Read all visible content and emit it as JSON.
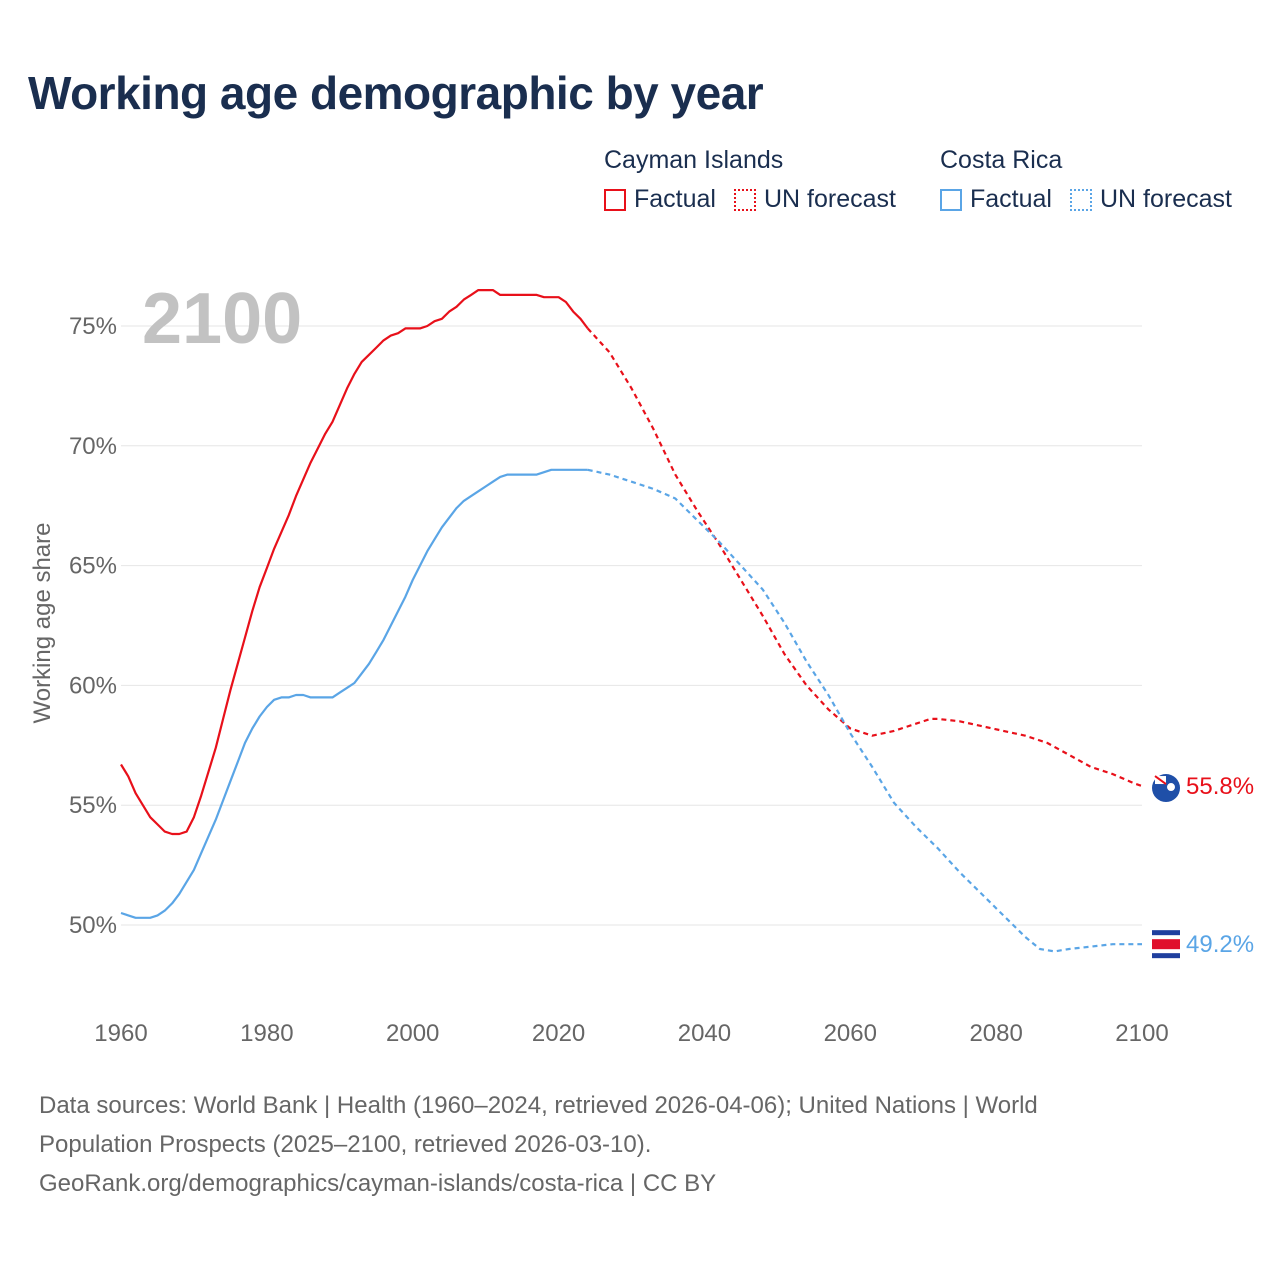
{
  "title": "Working age demographic by year",
  "year_watermark": "2100",
  "legend": {
    "groups": [
      {
        "name": "Cayman Islands",
        "color": "#e8101a",
        "factual_label": "Factual",
        "forecast_label": "UN forecast"
      },
      {
        "name": "Costa Rica",
        "color": "#5aa5e6",
        "factual_label": "Factual",
        "forecast_label": "UN forecast"
      }
    ]
  },
  "footer": {
    "line1": "Data sources: World Bank | Health (1960–2024, retrieved 2026-04-06); United Nations | World",
    "line2": "Population Prospects (2025–2100, retrieved 2026-03-10).",
    "line3": "GeoRank.org/demographics/cayman-islands/costa-rica | CC BY"
  },
  "chart_data": {
    "type": "line",
    "title": "Working age demographic by year",
    "xlabel": "",
    "ylabel": "Working age share",
    "xlim": [
      1960,
      2100
    ],
    "ylim": [
      47,
      78
    ],
    "x_ticks": [
      1960,
      1980,
      2000,
      2020,
      2040,
      2060,
      2080,
      2100
    ],
    "y_ticks": [
      50,
      55,
      60,
      65,
      70,
      75
    ],
    "y_tick_labels": [
      "50%",
      "55%",
      "60%",
      "65%",
      "70%",
      "75%"
    ],
    "grid": true,
    "series": [
      {
        "name": "Cayman Islands",
        "color": "#e8101a",
        "end_label": "55.8%",
        "factual": {
          "x": [
            1960,
            1961,
            1962,
            1963,
            1964,
            1965,
            1966,
            1967,
            1968,
            1969,
            1970,
            1971,
            1972,
            1973,
            1974,
            1975,
            1976,
            1977,
            1978,
            1979,
            1980,
            1981,
            1982,
            1983,
            1984,
            1985,
            1986,
            1987,
            1988,
            1989,
            1990,
            1991,
            1992,
            1993,
            1994,
            1995,
            1996,
            1997,
            1998,
            1999,
            2000,
            2001,
            2002,
            2003,
            2004,
            2005,
            2006,
            2007,
            2008,
            2009,
            2010,
            2011,
            2012,
            2013,
            2014,
            2015,
            2016,
            2017,
            2018,
            2019,
            2020,
            2021,
            2022,
            2023,
            2024
          ],
          "y": [
            56.7,
            56.2,
            55.5,
            55.0,
            54.5,
            54.2,
            53.9,
            53.8,
            53.8,
            53.9,
            54.5,
            55.4,
            56.4,
            57.4,
            58.6,
            59.8,
            60.9,
            62.0,
            63.1,
            64.1,
            64.9,
            65.7,
            66.4,
            67.1,
            67.9,
            68.6,
            69.3,
            69.9,
            70.5,
            71.0,
            71.7,
            72.4,
            73.0,
            73.5,
            73.8,
            74.1,
            74.4,
            74.6,
            74.7,
            74.9,
            74.9,
            74.9,
            75.0,
            75.2,
            75.3,
            75.6,
            75.8,
            76.1,
            76.3,
            76.5,
            76.5,
            76.5,
            76.3,
            76.3,
            76.3,
            76.3,
            76.3,
            76.3,
            76.2,
            76.2,
            76.2,
            76.0,
            75.6,
            75.3,
            74.9
          ]
        },
        "forecast": {
          "x": [
            2024,
            2027,
            2030,
            2033,
            2036,
            2039,
            2042,
            2045,
            2048,
            2051,
            2054,
            2057,
            2060,
            2063,
            2066,
            2069,
            2071,
            2072,
            2075,
            2078,
            2081,
            2084,
            2087,
            2090,
            2093,
            2096,
            2099,
            2100
          ],
          "y": [
            74.9,
            73.9,
            72.4,
            70.7,
            68.8,
            67.3,
            65.9,
            64.4,
            62.9,
            61.3,
            60.0,
            59.0,
            58.2,
            57.9,
            58.1,
            58.4,
            58.6,
            58.6,
            58.5,
            58.3,
            58.1,
            57.9,
            57.6,
            57.1,
            56.6,
            56.3,
            55.9,
            55.8
          ]
        }
      },
      {
        "name": "Costa Rica",
        "color": "#5aa5e6",
        "end_label": "49.2%",
        "factual": {
          "x": [
            1960,
            1961,
            1962,
            1963,
            1964,
            1965,
            1966,
            1967,
            1968,
            1969,
            1970,
            1971,
            1972,
            1973,
            1974,
            1975,
            1976,
            1977,
            1978,
            1979,
            1980,
            1981,
            1982,
            1983,
            1984,
            1985,
            1986,
            1987,
            1988,
            1989,
            1990,
            1991,
            1992,
            1993,
            1994,
            1995,
            1996,
            1997,
            1998,
            1999,
            2000,
            2001,
            2002,
            2003,
            2004,
            2005,
            2006,
            2007,
            2008,
            2009,
            2010,
            2011,
            2012,
            2013,
            2014,
            2015,
            2016,
            2017,
            2018,
            2019,
            2020,
            2021,
            2022,
            2023,
            2024
          ],
          "y": [
            50.5,
            50.4,
            50.3,
            50.3,
            50.3,
            50.4,
            50.6,
            50.9,
            51.3,
            51.8,
            52.3,
            53.0,
            53.7,
            54.4,
            55.2,
            56.0,
            56.8,
            57.6,
            58.2,
            58.7,
            59.1,
            59.4,
            59.5,
            59.5,
            59.6,
            59.6,
            59.5,
            59.5,
            59.5,
            59.5,
            59.7,
            59.9,
            60.1,
            60.5,
            60.9,
            61.4,
            61.9,
            62.5,
            63.1,
            63.7,
            64.4,
            65.0,
            65.6,
            66.1,
            66.6,
            67.0,
            67.4,
            67.7,
            67.9,
            68.1,
            68.3,
            68.5,
            68.7,
            68.8,
            68.8,
            68.8,
            68.8,
            68.8,
            68.9,
            69.0,
            69.0,
            69.0,
            69.0,
            69.0,
            69.0
          ]
        },
        "forecast": {
          "x": [
            2024,
            2027,
            2030,
            2033,
            2036,
            2039,
            2042,
            2045,
            2048,
            2051,
            2054,
            2057,
            2060,
            2063,
            2066,
            2069,
            2072,
            2075,
            2078,
            2081,
            2084,
            2086,
            2088,
            2090,
            2093,
            2096,
            2100
          ],
          "y": [
            69.0,
            68.8,
            68.5,
            68.2,
            67.8,
            66.9,
            66.0,
            65.0,
            64.0,
            62.6,
            61.0,
            59.6,
            58.0,
            56.6,
            55.1,
            54.1,
            53.2,
            52.2,
            51.3,
            50.4,
            49.5,
            49.0,
            48.9,
            49.0,
            49.1,
            49.2,
            49.2
          ]
        }
      }
    ]
  }
}
